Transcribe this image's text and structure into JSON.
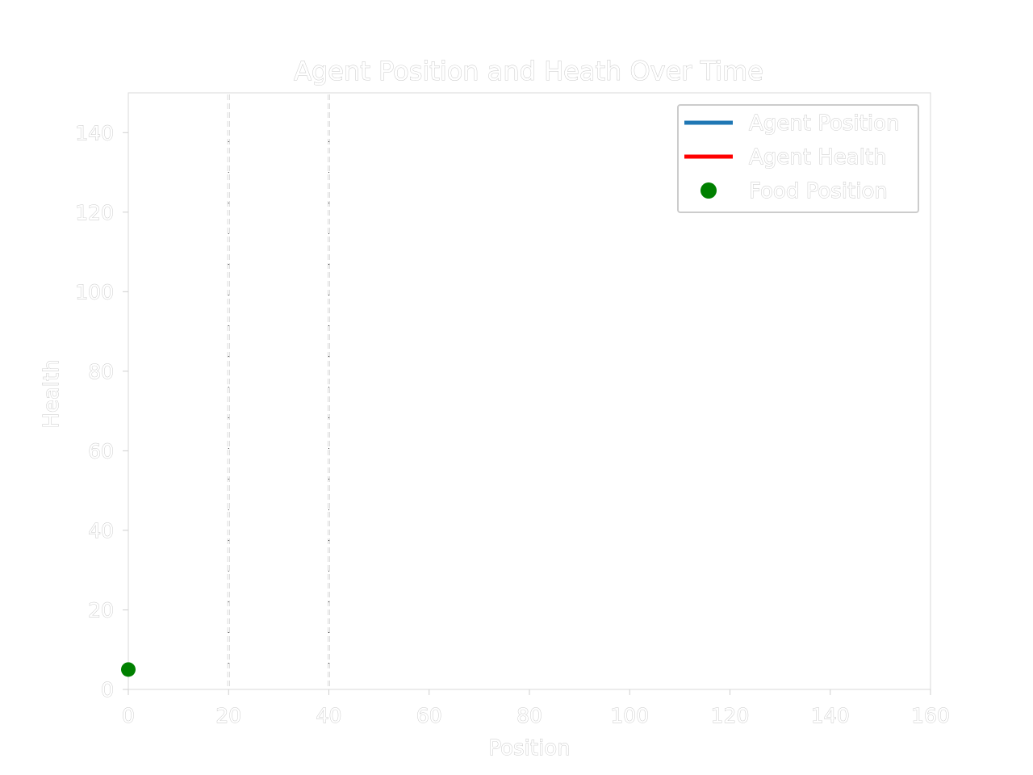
{
  "chart_data": {
    "type": "line",
    "title": "Agent Position and Heath Over Time",
    "xlabel": "Position",
    "ylabel": "Health",
    "xlim": [
      0,
      160
    ],
    "ylim": [
      0,
      150
    ],
    "xticks": [
      0,
      20,
      40,
      60,
      80,
      100,
      120,
      140,
      160
    ],
    "yticks": [
      0,
      20,
      40,
      60,
      80,
      100,
      120,
      140
    ],
    "grid": false,
    "legend_position": "top-right",
    "series": [
      {
        "name": "Agent Position",
        "kind": "line",
        "color": "#1f77b4",
        "points": []
      },
      {
        "name": "Agent Health",
        "kind": "line",
        "color": "#ff0000",
        "points": []
      },
      {
        "name": "Food Position",
        "kind": "scatter",
        "color": "#008000",
        "points": [
          {
            "x": 0,
            "y": 5
          }
        ]
      }
    ],
    "vertical_lines": [
      {
        "x": 20,
        "style": "dashed"
      },
      {
        "x": 40,
        "style": "dashed"
      }
    ]
  }
}
